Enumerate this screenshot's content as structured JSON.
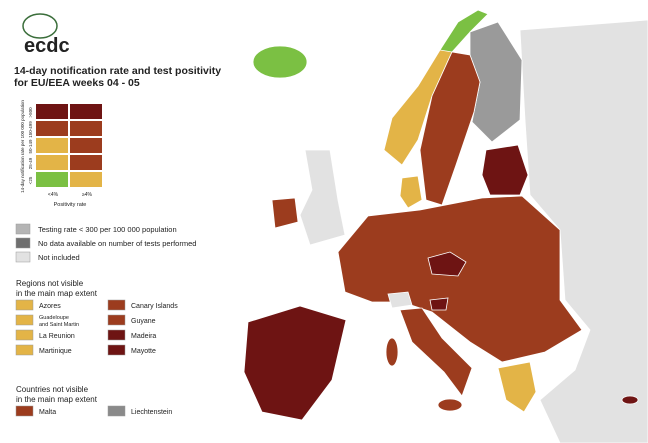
{
  "logo": "ecdc",
  "title_lines": [
    "14-day notification rate and test positivity",
    "for EU/EEA weeks 04 - 05"
  ],
  "matrix": {
    "y_label": "14-day notification rate per 100 000 population",
    "y_ticks": [
      ">500",
      "150-499",
      "50-149",
      "25-49",
      "<25"
    ],
    "x_ticks": [
      "<4%",
      "≥4%"
    ],
    "x_label": "Positivity rate",
    "cells": [
      [
        "#6e1413",
        "#6e1413"
      ],
      [
        "#9c3c1e",
        "#9c3c1e"
      ],
      [
        "#e3b447",
        "#9c3c1e"
      ],
      [
        "#e3b447",
        "#9c3c1e"
      ],
      [
        "#7bc043",
        "#e3b447"
      ]
    ]
  },
  "legend": [
    {
      "label": "Testing rate < 300 per 100 000 population",
      "color": "#b4b4b4"
    },
    {
      "label": "No data available on number of tests performed",
      "color": "#6f6f6f"
    },
    {
      "label": "Not included",
      "color": "#e2e2e2"
    }
  ],
  "regions": {
    "title_lines": [
      "Regions not visible",
      "in the main map extent"
    ],
    "items": [
      {
        "label_lines": [
          "Azores"
        ],
        "color": "#e3b447"
      },
      {
        "label_lines": [
          "Guadeloupe",
          "and Saint Martin"
        ],
        "color": "#e3b447"
      },
      {
        "label_lines": [
          "La Reunion"
        ],
        "color": "#e3b447"
      },
      {
        "label_lines": [
          "Martinique"
        ],
        "color": "#e3b447"
      },
      {
        "label_lines": [
          "Canary Islands"
        ],
        "color": "#9c3c1e"
      },
      {
        "label_lines": [
          "Guyane"
        ],
        "color": "#9c3c1e"
      },
      {
        "label_lines": [
          "Madeira"
        ],
        "color": "#6e1413"
      },
      {
        "label_lines": [
          "Mayotte"
        ],
        "color": "#6e1413"
      }
    ]
  },
  "countries": {
    "title_lines": [
      "Countries not visible",
      "in the main map extent"
    ],
    "items": [
      {
        "label_lines": [
          "Malta"
        ],
        "color": "#9c3c1e"
      },
      {
        "label_lines": [
          "Liechtenstein"
        ],
        "color": "#8a8a8a"
      }
    ]
  }
}
